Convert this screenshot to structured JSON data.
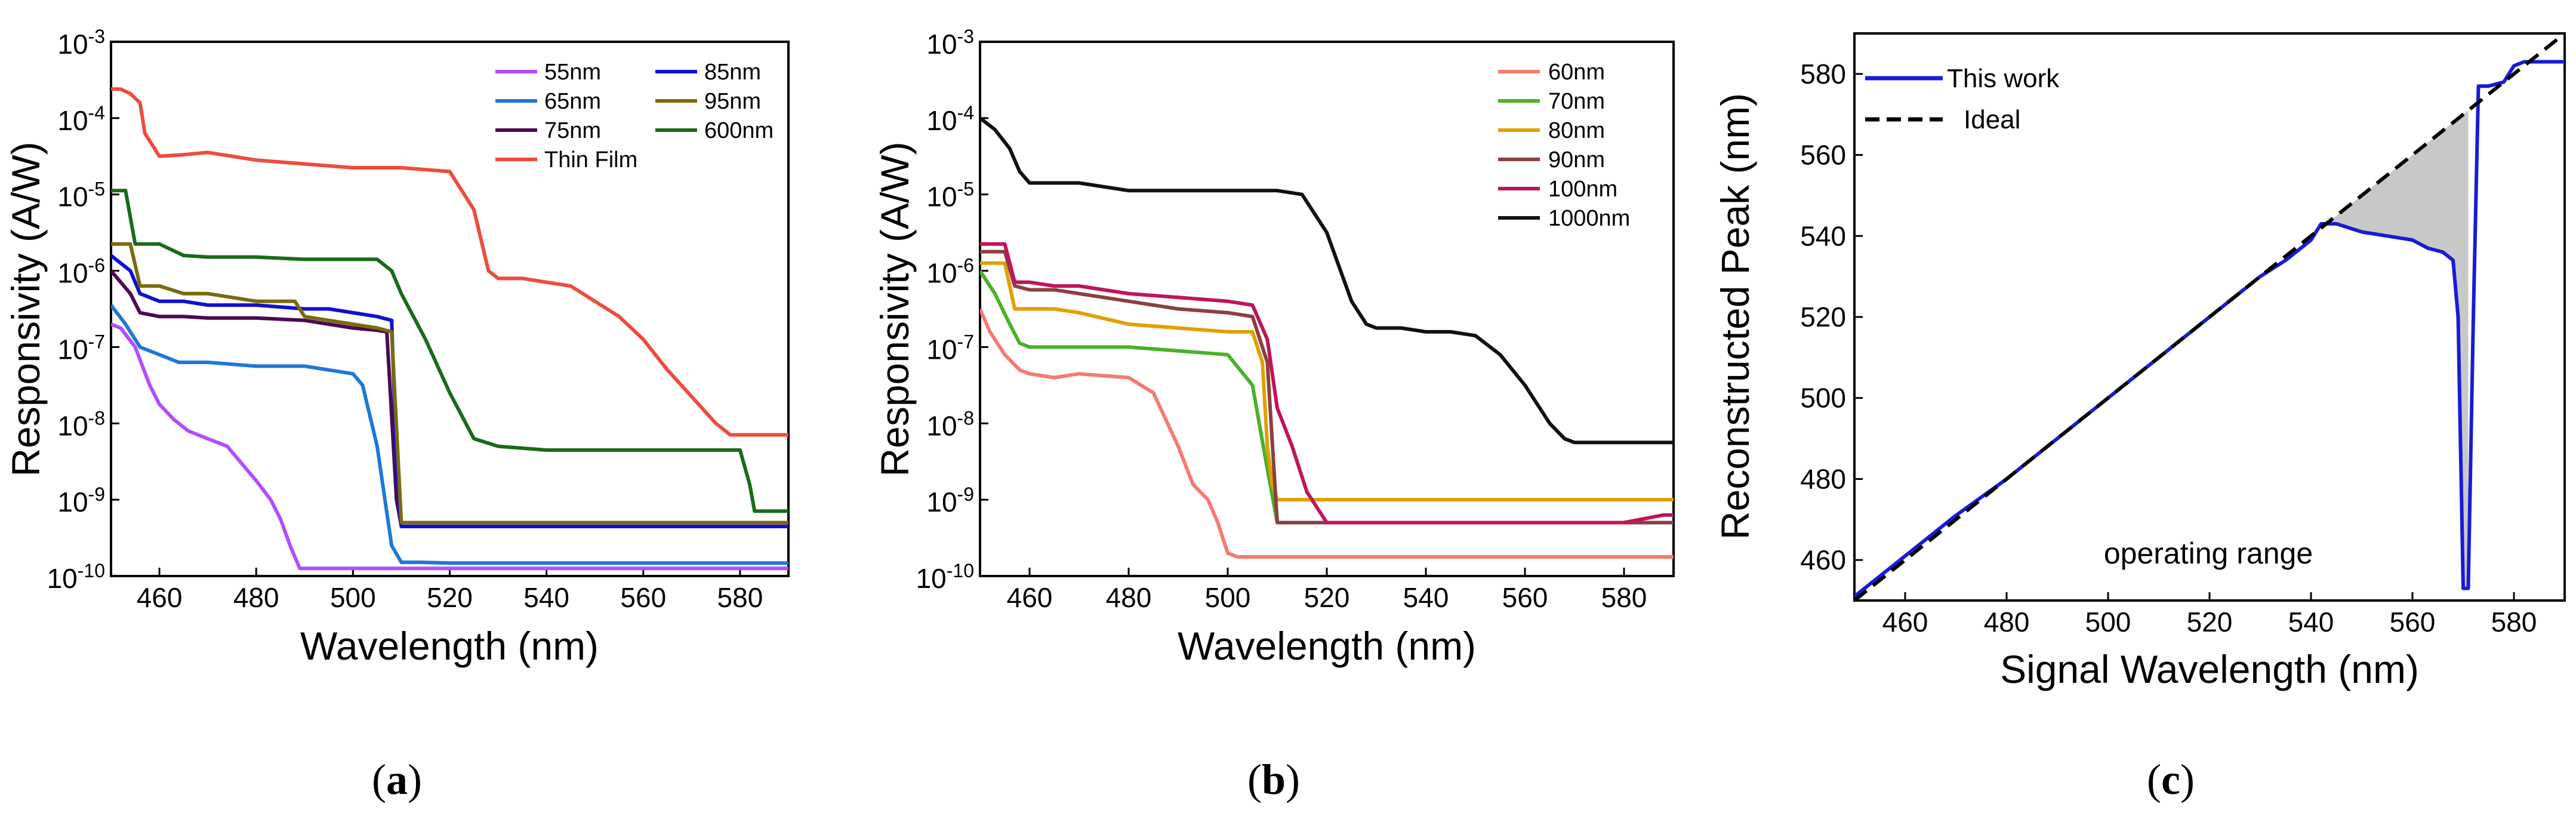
{
  "figure_labels": [
    {
      "open": "(",
      "letter": "a",
      "close": ")"
    },
    {
      "open": "(",
      "letter": "b",
      "close": ")"
    },
    {
      "open": "(",
      "letter": "c",
      "close": ")"
    }
  ],
  "chart_data": [
    {
      "type": "line",
      "yscale": "log",
      "title": "",
      "xlabel": "Wavelength (nm)",
      "ylabel": "Responsivity (A/W)",
      "xlim": [
        450,
        590
      ],
      "xticks": [
        460,
        480,
        500,
        520,
        540,
        560,
        580
      ],
      "ylim_exp": [
        -10,
        -3
      ],
      "yticks": [
        {
          "base": "10",
          "exp": "-3"
        },
        {
          "base": "10",
          "exp": "-4"
        },
        {
          "base": "10",
          "exp": "-5"
        },
        {
          "base": "10",
          "exp": "-6"
        },
        {
          "base": "10",
          "exp": "-7"
        },
        {
          "base": "10",
          "exp": "-8"
        },
        {
          "base": "10",
          "exp": "-9"
        },
        {
          "base": "10",
          "exp": "-10"
        }
      ],
      "legend_position": "top-right",
      "series": [
        {
          "name": "55nm",
          "color": "#b24dff",
          "x": [
            450,
            452,
            455,
            458,
            460,
            463,
            466,
            470,
            474,
            478,
            480,
            483,
            485,
            487,
            489,
            491,
            493,
            496,
            500,
            520,
            540,
            560,
            580,
            590
          ],
          "log10_y": [
            -6.7,
            -6.75,
            -7.0,
            -7.5,
            -7.75,
            -7.95,
            -8.1,
            -8.2,
            -8.3,
            -8.6,
            -8.75,
            -9.0,
            -9.25,
            -9.6,
            -9.9,
            -9.9,
            -9.9,
            -9.9,
            -9.9,
            -9.9,
            -9.9,
            -9.9,
            -9.9,
            -9.9
          ]
        },
        {
          "name": "65nm",
          "color": "#1f77d8",
          "x": [
            450,
            453,
            456,
            460,
            464,
            470,
            480,
            490,
            500,
            502,
            505,
            508,
            510,
            514,
            520,
            540,
            560,
            580,
            590
          ],
          "log10_y": [
            -6.45,
            -6.7,
            -7.0,
            -7.1,
            -7.2,
            -7.2,
            -7.25,
            -7.25,
            -7.35,
            -7.5,
            -8.3,
            -9.6,
            -9.82,
            -9.82,
            -9.83,
            -9.83,
            -9.83,
            -9.83,
            -9.83
          ]
        },
        {
          "name": "75nm",
          "color": "#4b0a52",
          "x": [
            450,
            454,
            456,
            460,
            465,
            470,
            480,
            490,
            495,
            500,
            505,
            507,
            509,
            510,
            520,
            540,
            560,
            580,
            590
          ],
          "log10_y": [
            -6.0,
            -6.3,
            -6.55,
            -6.6,
            -6.6,
            -6.62,
            -6.62,
            -6.65,
            -6.7,
            -6.75,
            -6.78,
            -6.8,
            -9.0,
            -9.35,
            -9.35,
            -9.35,
            -9.35,
            -9.35,
            -9.35
          ]
        },
        {
          "name": "85nm",
          "color": "#1010d0",
          "x": [
            450,
            454,
            456,
            460,
            465,
            470,
            480,
            490,
            495,
            500,
            505,
            508,
            509,
            510,
            520,
            540,
            560,
            580,
            590
          ],
          "log10_y": [
            -5.8,
            -6.0,
            -6.3,
            -6.4,
            -6.4,
            -6.45,
            -6.45,
            -6.5,
            -6.5,
            -6.55,
            -6.6,
            -6.65,
            -8.5,
            -9.35,
            -9.35,
            -9.35,
            -9.35,
            -9.35,
            -9.35
          ]
        },
        {
          "name": "95nm",
          "color": "#7a6a10",
          "x": [
            450,
            454,
            456,
            460,
            465,
            470,
            480,
            488,
            490,
            500,
            505,
            508,
            510,
            520,
            540,
            560,
            580,
            590
          ],
          "log10_y": [
            -5.65,
            -5.65,
            -6.2,
            -6.2,
            -6.3,
            -6.3,
            -6.4,
            -6.4,
            -6.6,
            -6.7,
            -6.75,
            -6.8,
            -9.3,
            -9.3,
            -9.3,
            -9.3,
            -9.3,
            -9.3
          ]
        },
        {
          "name": "600nm",
          "color": "#1a6a1a",
          "x": [
            450,
            453,
            455,
            460,
            465,
            470,
            480,
            490,
            500,
            505,
            508,
            510,
            515,
            520,
            525,
            530,
            540,
            560,
            580,
            582,
            583,
            590
          ],
          "log10_y": [
            -4.95,
            -4.95,
            -5.65,
            -5.65,
            -5.8,
            -5.82,
            -5.82,
            -5.85,
            -5.85,
            -5.85,
            -6.0,
            -6.3,
            -6.9,
            -7.6,
            -8.2,
            -8.3,
            -8.35,
            -8.35,
            -8.35,
            -8.8,
            -9.15,
            -9.15
          ]
        },
        {
          "name": "Thin Film",
          "color": "#f04a3e",
          "x": [
            450,
            452,
            454,
            456,
            457,
            460,
            465,
            470,
            480,
            490,
            500,
            505,
            510,
            520,
            525,
            528,
            530,
            535,
            540,
            545,
            550,
            555,
            560,
            565,
            570,
            575,
            578,
            580,
            584,
            590
          ],
          "log10_y": [
            -3.62,
            -3.62,
            -3.68,
            -3.8,
            -4.2,
            -4.5,
            -4.48,
            -4.45,
            -4.55,
            -4.6,
            -4.65,
            -4.65,
            -4.65,
            -4.7,
            -5.2,
            -6.0,
            -6.1,
            -6.1,
            -6.15,
            -6.2,
            -6.4,
            -6.6,
            -6.9,
            -7.3,
            -7.65,
            -8.0,
            -8.15,
            -8.15,
            -8.15,
            -8.15
          ]
        }
      ]
    },
    {
      "type": "line",
      "yscale": "log",
      "title": "",
      "xlabel": "Wavelength (nm)",
      "ylabel": "Responsivity (A/W)",
      "xlim": [
        450,
        590
      ],
      "xticks": [
        460,
        480,
        500,
        520,
        540,
        560,
        580
      ],
      "ylim_exp": [
        -10,
        -3
      ],
      "yticks": [
        {
          "base": "10",
          "exp": "-3"
        },
        {
          "base": "10",
          "exp": "-4"
        },
        {
          "base": "10",
          "exp": "-5"
        },
        {
          "base": "10",
          "exp": "-6"
        },
        {
          "base": "10",
          "exp": "-7"
        },
        {
          "base": "10",
          "exp": "-8"
        },
        {
          "base": "10",
          "exp": "-9"
        },
        {
          "base": "10",
          "exp": "-10"
        }
      ],
      "legend_position": "top-right",
      "series": [
        {
          "name": "60nm",
          "color": "#f47a72",
          "x": [
            450,
            452,
            455,
            458,
            460,
            465,
            470,
            480,
            485,
            490,
            493,
            496,
            498,
            500,
            502,
            510,
            520,
            540,
            560,
            580,
            590
          ],
          "log10_y": [
            -6.5,
            -6.8,
            -7.1,
            -7.3,
            -7.35,
            -7.4,
            -7.35,
            -7.4,
            -7.6,
            -8.3,
            -8.8,
            -9.0,
            -9.3,
            -9.7,
            -9.75,
            -9.75,
            -9.75,
            -9.75,
            -9.75,
            -9.75,
            -9.75
          ]
        },
        {
          "name": "70nm",
          "color": "#4ab12a",
          "x": [
            450,
            453,
            456,
            458,
            460,
            465,
            470,
            480,
            490,
            500,
            505,
            508,
            510,
            520,
            540,
            560,
            580,
            590
          ],
          "log10_y": [
            -6.0,
            -6.3,
            -6.7,
            -6.95,
            -7.0,
            -7.0,
            -7.0,
            -7.0,
            -7.05,
            -7.1,
            -7.5,
            -8.6,
            -9.3,
            -9.3,
            -9.3,
            -9.3,
            -9.3,
            -9.3
          ]
        },
        {
          "name": "80nm",
          "color": "#e0a000",
          "x": [
            450,
            455,
            457,
            460,
            465,
            470,
            480,
            490,
            500,
            505,
            507,
            508,
            509,
            510,
            520,
            540,
            560,
            580,
            590
          ],
          "log10_y": [
            -5.9,
            -5.9,
            -6.5,
            -6.5,
            -6.5,
            -6.55,
            -6.7,
            -6.75,
            -6.8,
            -6.8,
            -7.2,
            -8.3,
            -8.8,
            -9.0,
            -9.0,
            -9.0,
            -9.0,
            -9.0,
            -9.0
          ]
        },
        {
          "name": "90nm",
          "color": "#8a4040",
          "x": [
            450,
            455,
            457,
            460,
            465,
            470,
            480,
            490,
            500,
            505,
            508,
            510,
            512,
            520,
            540,
            560,
            580,
            590
          ],
          "log10_y": [
            -5.75,
            -5.75,
            -6.2,
            -6.25,
            -6.25,
            -6.3,
            -6.4,
            -6.5,
            -6.55,
            -6.6,
            -7.2,
            -9.3,
            -9.3,
            -9.3,
            -9.3,
            -9.3,
            -9.3,
            -9.3
          ]
        },
        {
          "name": "100nm",
          "color": "#c0145a",
          "x": [
            450,
            455,
            457,
            460,
            465,
            470,
            480,
            490,
            500,
            505,
            508,
            510,
            513,
            516,
            520,
            540,
            560,
            580,
            588,
            590
          ],
          "log10_y": [
            -5.65,
            -5.65,
            -6.15,
            -6.15,
            -6.2,
            -6.2,
            -6.3,
            -6.35,
            -6.4,
            -6.45,
            -6.9,
            -7.8,
            -8.3,
            -8.9,
            -9.3,
            -9.3,
            -9.3,
            -9.3,
            -9.2,
            -9.2
          ]
        },
        {
          "name": "1000nm",
          "color": "#111111",
          "x": [
            450,
            453,
            456,
            458,
            460,
            465,
            470,
            480,
            490,
            500,
            505,
            510,
            515,
            520,
            525,
            528,
            530,
            535,
            540,
            545,
            550,
            555,
            560,
            565,
            568,
            570,
            575,
            580,
            590
          ],
          "log10_y": [
            -4.0,
            -4.15,
            -4.4,
            -4.7,
            -4.85,
            -4.85,
            -4.85,
            -4.95,
            -4.95,
            -4.95,
            -4.95,
            -4.95,
            -5.0,
            -5.5,
            -6.4,
            -6.7,
            -6.75,
            -6.75,
            -6.8,
            -6.8,
            -6.85,
            -7.1,
            -7.5,
            -8.0,
            -8.2,
            -8.25,
            -8.25,
            -8.25,
            -8.25
          ]
        }
      ]
    },
    {
      "type": "line",
      "title": "",
      "xlabel": "Signal Wavelength (nm)",
      "ylabel": "Reconstructed Peak (nm)",
      "xlim": [
        450,
        590
      ],
      "ylim": [
        450,
        590
      ],
      "xticks": [
        460,
        480,
        500,
        520,
        540,
        560,
        580
      ],
      "yticks": [
        460,
        480,
        500,
        520,
        540,
        560,
        580
      ],
      "legend_position": "top-left",
      "annotation": "operating range",
      "shaded_region": {
        "description": "between ideal and measured curves",
        "x_range": [
          542,
          571
        ],
        "color": "#c8c8c8"
      },
      "series": [
        {
          "name": "This work",
          "color": "#1a1ad8",
          "style": "solid",
          "x": [
            450,
            460,
            470,
            480,
            490,
            500,
            510,
            520,
            530,
            535,
            540,
            542,
            545,
            550,
            555,
            560,
            563,
            566,
            568,
            569,
            570,
            571,
            572,
            573,
            575,
            578,
            580,
            582,
            585,
            590
          ],
          "y": [
            451,
            461,
            471,
            480,
            490,
            500,
            510,
            520,
            530,
            534,
            539,
            543,
            543,
            541,
            540,
            539,
            537,
            536,
            534,
            520,
            453,
            453,
            520,
            577,
            577,
            578,
            582,
            583,
            583,
            583
          ]
        },
        {
          "name": "Ideal",
          "color": "#000000",
          "style": "dashed",
          "x": [
            450,
            590
          ],
          "y": [
            450,
            590
          ]
        }
      ]
    }
  ]
}
